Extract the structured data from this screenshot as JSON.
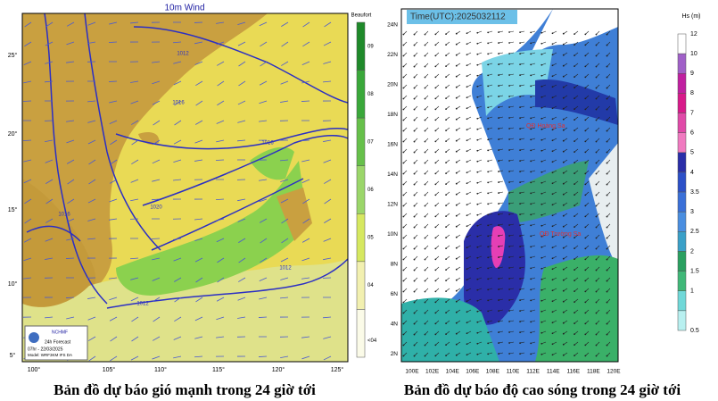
{
  "left_map": {
    "title": "10m Wind",
    "legend_title": "Beaufort",
    "legend_labels": [
      "09",
      "08",
      "07",
      "06",
      "05",
      "04",
      "<04"
    ],
    "lat_labels": [
      "25°",
      "20°",
      "15°",
      "10°",
      "5°"
    ],
    "lon_labels": [
      "100°",
      "105°",
      "110°",
      "115°",
      "120°",
      "125°"
    ],
    "isobar_labels": [
      "1012",
      "1016",
      "1020",
      "1016",
      "1012",
      "1016",
      "1012"
    ],
    "logo": {
      "org": "NCHMF",
      "lines": [
        "24h Forecast",
        "07hr - 22/03/2025",
        "Model: WRF3KM IFS DA"
      ]
    },
    "caption": "Bản đồ dự báo gió mạnh trong 24 giờ tới"
  },
  "right_map": {
    "time_label": "Time(UTC):2025032112",
    "legend_title": "Hs (m)",
    "legend_labels": [
      "12",
      "10",
      "9",
      "8",
      "7",
      "6",
      "5",
      "4",
      "3.5",
      "3",
      "2.5",
      "2",
      "1.5",
      "1",
      "0.5"
    ],
    "lat_labels": [
      "24N",
      "22N",
      "20N",
      "18N",
      "16N",
      "14N",
      "12N",
      "10N",
      "8N",
      "6N",
      "4N",
      "2N"
    ],
    "lon_labels": [
      "100E",
      "102E",
      "104E",
      "106E",
      "108E",
      "110E",
      "112E",
      "114E",
      "116E",
      "118E",
      "120E"
    ],
    "place_labels": [
      "QĐ Hoàng Sa",
      "QĐ Trường Sa"
    ],
    "caption": "Bản đồ dự báo độ cao sóng trong 24 giờ tới"
  }
}
